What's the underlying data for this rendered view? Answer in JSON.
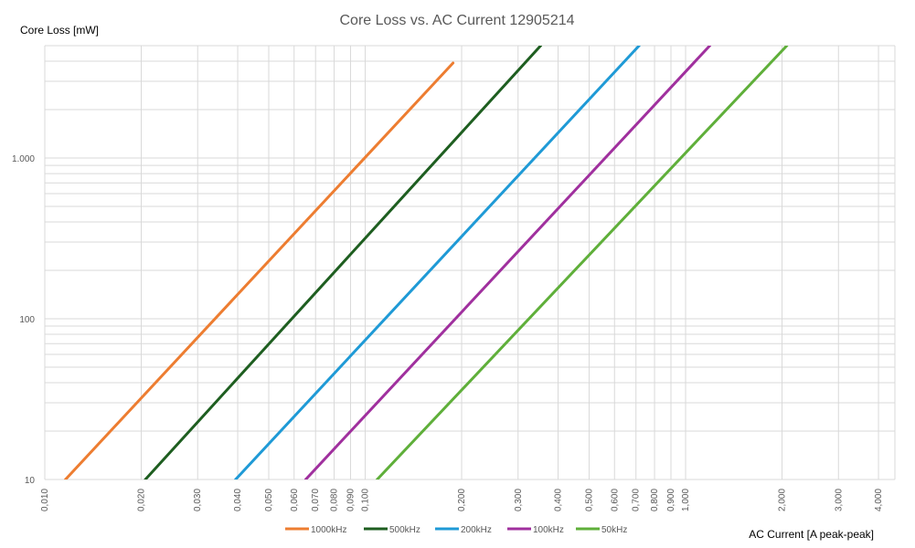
{
  "chart_data": {
    "type": "line",
    "title": "Core Loss vs. AC Current 12905214",
    "xlabel": "AC Current [A peak-peak]",
    "ylabel": "Core Loss [mW]",
    "xscale": "log",
    "yscale": "log",
    "xlim": [
      0.01,
      4.5
    ],
    "ylim": [
      10,
      5000
    ],
    "grid": true,
    "legend_position": "bottom",
    "x_ticks": [
      0.01,
      0.02,
      0.03,
      0.04,
      0.05,
      0.06,
      0.07,
      0.08,
      0.09,
      0.1,
      0.2,
      0.3,
      0.4,
      0.5,
      0.6,
      0.7,
      0.8,
      0.9,
      1,
      2,
      3,
      4
    ],
    "x_tick_labels": [
      "0,010",
      "0,020",
      "0,030",
      "0,040",
      "0,050",
      "0,060",
      "0,070",
      "0,080",
      "0,090",
      "0,100",
      "0,200",
      "0,300",
      "0,400",
      "0,500",
      "0,600",
      "0,700",
      "0,800",
      "0,900",
      "1,000",
      "2,000",
      "3,000",
      "4,000"
    ],
    "y_ticks": [
      10,
      100,
      1000
    ],
    "y_tick_labels": [
      "10",
      "100",
      "1.000"
    ],
    "series": [
      {
        "name": "1000kHz",
        "color": "#ED7D31",
        "x": [
          0.0116,
          0.188
        ],
        "y": [
          10,
          3900
        ]
      },
      {
        "name": "500kHz",
        "color": "#1E5E20",
        "x": [
          0.0206,
          0.353
        ],
        "y": [
          10,
          5000
        ]
      },
      {
        "name": "200kHz",
        "color": "#1F9AD6",
        "x": [
          0.0394,
          0.716
        ],
        "y": [
          10,
          5000
        ]
      },
      {
        "name": "100kHz",
        "color": "#A0309E",
        "x": [
          0.0652,
          1.19
        ],
        "y": [
          10,
          5000
        ]
      },
      {
        "name": "50kHz",
        "color": "#5FAF3A",
        "x": [
          0.109,
          2.07
        ],
        "y": [
          10,
          5000
        ]
      }
    ]
  }
}
